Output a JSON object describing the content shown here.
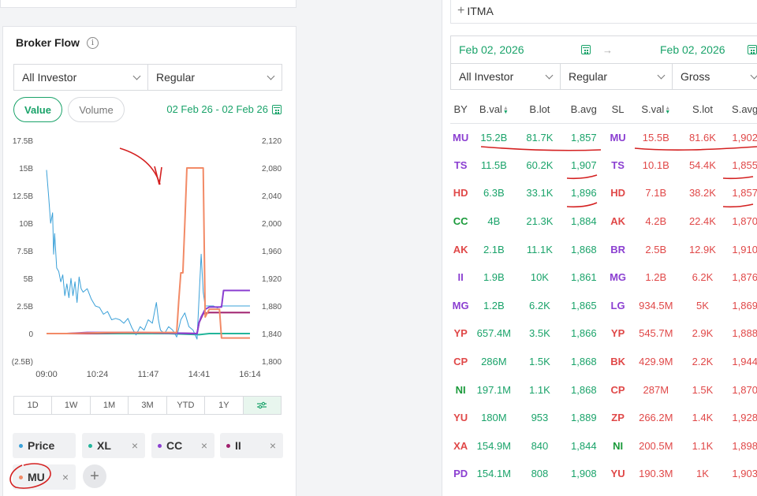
{
  "broker_flow": {
    "title": "Broker Flow",
    "info_icon": "info-icon",
    "investor_select": "All Investor",
    "market_select": "Regular",
    "toggle": {
      "value": "Value",
      "volume": "Volume"
    },
    "date_range": "02 Feb 26 - 02 Feb 26",
    "periods": [
      "1D",
      "1W",
      "1M",
      "3M",
      "YTD",
      "1Y"
    ],
    "chips": [
      {
        "label": "Price",
        "color": "#3aa0d8"
      },
      {
        "label": "XL",
        "color": "#22b59a"
      },
      {
        "label": "CC",
        "color": "#8b3fd1"
      },
      {
        "label": "II",
        "color": "#a0206e"
      },
      {
        "label": "MU",
        "color": "#f28a66"
      }
    ],
    "chips_close": "×",
    "add_label": "+"
  },
  "chart_data": {
    "type": "line",
    "x_ticks": [
      "09:00",
      "10:24",
      "11:47",
      "14:41",
      "16:14"
    ],
    "y_left_ticks": [
      "17.5B",
      "15B",
      "12.5B",
      "10B",
      "7.5B",
      "5B",
      "2.5B",
      "0",
      "(2.5B)"
    ],
    "y_right_ticks": [
      "2,120",
      "2,080",
      "2,040",
      "2,000",
      "1,960",
      "1,920",
      "1,880",
      "1,840",
      "1,800"
    ],
    "ylim_left": [
      -2.5,
      17.5
    ],
    "ylim_right": [
      1800,
      2120
    ],
    "series": [
      {
        "name": "Price",
        "axis": "right",
        "color": "#3aa0d8",
        "points": [
          [
            0,
            2077
          ],
          [
            0.01,
            2040
          ],
          [
            0.02,
            2000
          ],
          [
            0.03,
            2015
          ],
          [
            0.035,
            1955
          ],
          [
            0.04,
            1985
          ],
          [
            0.05,
            1935
          ],
          [
            0.06,
            1930
          ],
          [
            0.07,
            1915
          ],
          [
            0.08,
            1925
          ],
          [
            0.09,
            1895
          ],
          [
            0.1,
            1912
          ],
          [
            0.11,
            1892
          ],
          [
            0.12,
            1920
          ],
          [
            0.13,
            1895
          ],
          [
            0.14,
            1915
          ],
          [
            0.15,
            1885
          ],
          [
            0.16,
            1922
          ],
          [
            0.17,
            1905
          ],
          [
            0.18,
            1900
          ],
          [
            0.2,
            1905
          ],
          [
            0.22,
            1890
          ],
          [
            0.24,
            1880
          ],
          [
            0.26,
            1878
          ],
          [
            0.28,
            1868
          ],
          [
            0.3,
            1872
          ],
          [
            0.32,
            1860
          ],
          [
            0.34,
            1862
          ],
          [
            0.36,
            1860
          ],
          [
            0.38,
            1855
          ],
          [
            0.4,
            1862
          ],
          [
            0.42,
            1848
          ],
          [
            0.44,
            1838
          ],
          [
            0.46,
            1850
          ],
          [
            0.48,
            1845
          ],
          [
            0.5,
            1860
          ],
          [
            0.52,
            1855
          ],
          [
            0.54,
            1885
          ],
          [
            0.55,
            1860
          ],
          [
            0.56,
            1845
          ],
          [
            0.58,
            1840
          ],
          [
            0.6,
            1850
          ],
          [
            0.62,
            1845
          ],
          [
            0.64,
            1835
          ],
          [
            0.66,
            1860
          ],
          [
            0.68,
            1870
          ],
          [
            0.7,
            1850
          ],
          [
            0.72,
            1845
          ],
          [
            0.74,
            1832
          ],
          [
            0.76,
            1955
          ],
          [
            0.77,
            1900
          ],
          [
            0.78,
            1880
          ],
          [
            0.8,
            1880
          ],
          [
            0.82,
            1880
          ],
          [
            0.84,
            1877
          ],
          [
            0.86,
            1880
          ],
          [
            0.9,
            1880
          ],
          [
            0.94,
            1880
          ],
          [
            0.96,
            1880
          ],
          [
            1.0,
            1880
          ]
        ]
      },
      {
        "name": "XL",
        "axis": "left",
        "color": "#22b59a",
        "points": [
          [
            0,
            0
          ],
          [
            0.3,
            0
          ],
          [
            0.6,
            0
          ],
          [
            0.75,
            -0.1
          ],
          [
            0.8,
            0
          ],
          [
            0.9,
            0
          ],
          [
            1.0,
            0
          ]
        ]
      },
      {
        "name": "CC",
        "axis": "left",
        "color": "#8b3fd1",
        "points": [
          [
            0,
            0
          ],
          [
            0.1,
            0
          ],
          [
            0.2,
            0.1
          ],
          [
            0.4,
            0.1
          ],
          [
            0.6,
            0.05
          ],
          [
            0.74,
            0
          ],
          [
            0.75,
            1
          ],
          [
            0.76,
            1.5
          ],
          [
            0.78,
            2.2
          ],
          [
            0.8,
            2.4
          ],
          [
            0.86,
            2.4
          ],
          [
            0.87,
            3.9
          ],
          [
            0.9,
            3.9
          ],
          [
            1.0,
            3.9
          ]
        ]
      },
      {
        "name": "II",
        "axis": "left",
        "color": "#a0206e",
        "points": [
          [
            0,
            0
          ],
          [
            0.2,
            0
          ],
          [
            0.4,
            0.1
          ],
          [
            0.6,
            0.05
          ],
          [
            0.74,
            0
          ],
          [
            0.75,
            1
          ],
          [
            0.77,
            1.8
          ],
          [
            0.8,
            1.9
          ],
          [
            0.9,
            1.9
          ],
          [
            1.0,
            1.9
          ]
        ]
      },
      {
        "name": "MU",
        "axis": "left",
        "color": "#f28a66",
        "points": [
          [
            0,
            0
          ],
          [
            0.1,
            0
          ],
          [
            0.3,
            0.1
          ],
          [
            0.55,
            0.1
          ],
          [
            0.64,
            0.1
          ],
          [
            0.65,
            3.0
          ],
          [
            0.66,
            5.5
          ],
          [
            0.67,
            5.5
          ],
          [
            0.68,
            10
          ],
          [
            0.69,
            15
          ],
          [
            0.77,
            15
          ],
          [
            0.78,
            1.5
          ],
          [
            0.8,
            2.2
          ],
          [
            0.85,
            2.2
          ],
          [
            0.86,
            -0.4
          ],
          [
            1.0,
            -0.4
          ]
        ]
      }
    ]
  },
  "right": {
    "add_item": "ITMA",
    "add_icon": "+",
    "date_from": "Feb 02, 2026",
    "date_to": "Feb 02, 2026",
    "arrow": "→",
    "investor_select": "All Investor",
    "market_select": "Regular",
    "type_select": "Gross",
    "columns": [
      "BY",
      "B.val",
      "B.lot",
      "B.avg",
      "SL",
      "S.val",
      "S.lot",
      "S.avg"
    ],
    "rows": [
      {
        "by": "MU",
        "by_color": "#8b3fd1",
        "bval": "15.2B",
        "blot": "81.7K",
        "bavg": "1,857",
        "sl": "MU",
        "sl_color": "#8b3fd1",
        "sval": "15.5B",
        "slot": "81.6K",
        "savg": "1,902"
      },
      {
        "by": "TS",
        "by_color": "#8b3fd1",
        "bval": "11.5B",
        "blot": "60.2K",
        "bavg": "1,907",
        "sl": "TS",
        "sl_color": "#8b3fd1",
        "sval": "10.1B",
        "slot": "54.4K",
        "savg": "1,855"
      },
      {
        "by": "HD",
        "by_color": "#e04848",
        "bval": "6.3B",
        "blot": "33.1K",
        "bavg": "1,896",
        "sl": "HD",
        "sl_color": "#e04848",
        "sval": "7.1B",
        "slot": "38.2K",
        "savg": "1,857"
      },
      {
        "by": "CC",
        "by_color": "#1a9a3a",
        "bval": "4B",
        "blot": "21.3K",
        "bavg": "1,884",
        "sl": "AK",
        "sl_color": "#e04848",
        "sval": "4.2B",
        "slot": "22.4K",
        "savg": "1,870"
      },
      {
        "by": "AK",
        "by_color": "#e04848",
        "bval": "2.1B",
        "blot": "11.1K",
        "bavg": "1,868",
        "sl": "BR",
        "sl_color": "#8b3fd1",
        "sval": "2.5B",
        "slot": "12.9K",
        "savg": "1,910"
      },
      {
        "by": "II",
        "by_color": "#8b3fd1",
        "bval": "1.9B",
        "blot": "10K",
        "bavg": "1,861",
        "sl": "MG",
        "sl_color": "#8b3fd1",
        "sval": "1.2B",
        "slot": "6.2K",
        "savg": "1,876"
      },
      {
        "by": "MG",
        "by_color": "#8b3fd1",
        "bval": "1.2B",
        "blot": "6.2K",
        "bavg": "1,865",
        "sl": "LG",
        "sl_color": "#8b3fd1",
        "sval": "934.5M",
        "slot": "5K",
        "savg": "1,869"
      },
      {
        "by": "YP",
        "by_color": "#e04848",
        "bval": "657.4M",
        "blot": "3.5K",
        "bavg": "1,866",
        "sl": "YP",
        "sl_color": "#e04848",
        "sval": "545.7M",
        "slot": "2.9K",
        "savg": "1,888"
      },
      {
        "by": "CP",
        "by_color": "#e04848",
        "bval": "286M",
        "blot": "1.5K",
        "bavg": "1,868",
        "sl": "BK",
        "sl_color": "#e04848",
        "sval": "429.9M",
        "slot": "2.2K",
        "savg": "1,944"
      },
      {
        "by": "NI",
        "by_color": "#1a9a3a",
        "bval": "197.1M",
        "blot": "1.1K",
        "bavg": "1,868",
        "sl": "CP",
        "sl_color": "#e04848",
        "sval": "287M",
        "slot": "1.5K",
        "savg": "1,870"
      },
      {
        "by": "YU",
        "by_color": "#e04848",
        "bval": "180M",
        "blot": "953",
        "bavg": "1,889",
        "sl": "ZP",
        "sl_color": "#e04848",
        "sval": "266.2M",
        "slot": "1.4K",
        "savg": "1,928"
      },
      {
        "by": "XA",
        "by_color": "#e04848",
        "bval": "154.9M",
        "blot": "840",
        "bavg": "1,844",
        "sl": "NI",
        "sl_color": "#1a9a3a",
        "sval": "200.5M",
        "slot": "1.1K",
        "savg": "1,898"
      },
      {
        "by": "PD",
        "by_color": "#8b3fd1",
        "bval": "154.1M",
        "blot": "808",
        "bavg": "1,908",
        "sl": "YU",
        "sl_color": "#e04848",
        "sval": "190.3M",
        "slot": "1K",
        "savg": "1,903"
      }
    ]
  }
}
